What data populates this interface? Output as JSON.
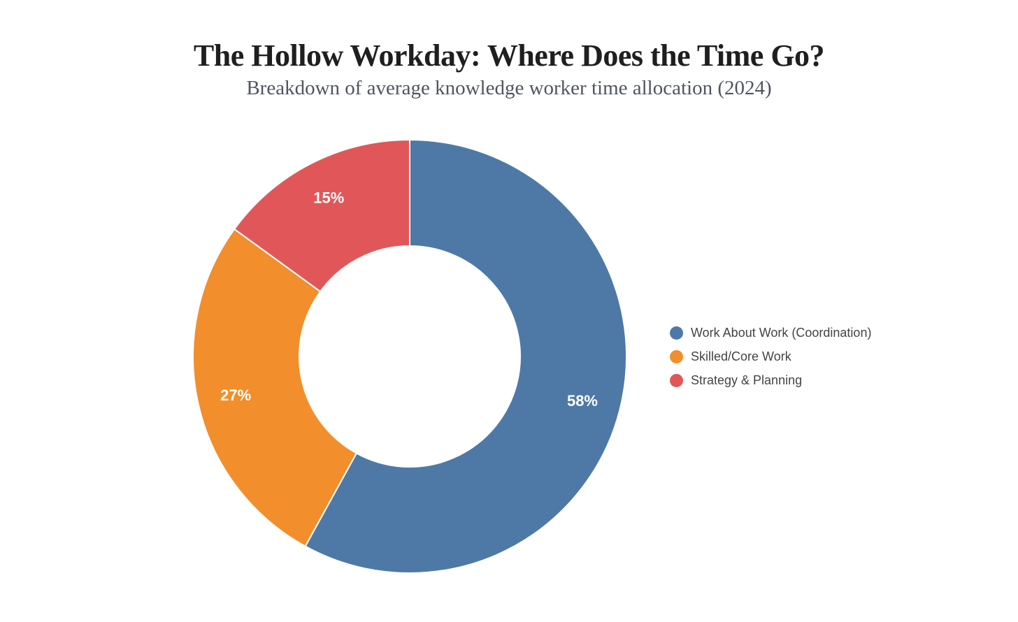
{
  "header": {
    "title": "The Hollow Workday: Where Does the Time Go?",
    "subtitle": "Breakdown of average knowledge worker time allocation (2024)"
  },
  "chart_data": {
    "type": "pie",
    "variant": "donut",
    "title": "The Hollow Workday: Where Does the Time Go?",
    "subtitle": "Breakdown of average knowledge worker time allocation (2024)",
    "categories": [
      "Work About Work (Coordination)",
      "Skilled/Core Work",
      "Strategy & Planning"
    ],
    "values": [
      58,
      27,
      15
    ],
    "value_labels": [
      "58%",
      "27%",
      "15%"
    ],
    "colors": [
      "#4e79a7",
      "#f28e2b",
      "#e15759"
    ],
    "start_angle_deg": 0,
    "direction": "clockwise",
    "inner_radius_ratio": 0.51,
    "separator_color": "#ffffff",
    "slice_label_color": "#ffffff",
    "legend_position": "right",
    "background": "#ffffff"
  },
  "legend": {
    "items": [
      {
        "label": "Work About Work (Coordination)",
        "color": "#4e79a7"
      },
      {
        "label": "Skilled/Core Work",
        "color": "#f28e2b"
      },
      {
        "label": "Strategy & Planning",
        "color": "#e15759"
      }
    ]
  }
}
